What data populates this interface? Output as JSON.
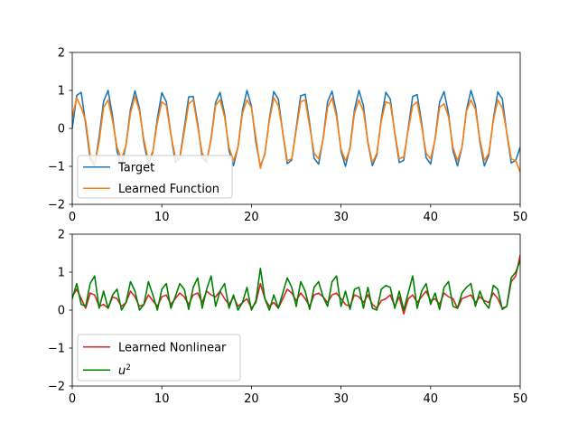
{
  "chart_data": [
    {
      "type": "line",
      "title": "",
      "xlabel": "",
      "ylabel": "",
      "xlim": [
        0,
        50
      ],
      "ylim": [
        -2,
        2
      ],
      "xticks": [
        "0",
        "10",
        "20",
        "30",
        "40",
        "50"
      ],
      "yticks": [
        "−2",
        "−1",
        "0",
        "1",
        "2"
      ],
      "grid": false,
      "legend_position": "lower-left",
      "series": [
        {
          "name": "Target",
          "color": "#1f77b4",
          "x": [
            0,
            0.5,
            1,
            1.5,
            2,
            2.5,
            3,
            3.5,
            4,
            4.5,
            5,
            5.5,
            6,
            6.5,
            7,
            7.5,
            8,
            8.5,
            9,
            9.5,
            10,
            10.5,
            11,
            11.5,
            12,
            12.5,
            13,
            13.5,
            14,
            14.5,
            15,
            15.5,
            16,
            16.5,
            17,
            17.5,
            18,
            18.5,
            19,
            19.5,
            20,
            20.5,
            21,
            21.5,
            22,
            22.5,
            23,
            23.5,
            24,
            24.5,
            25,
            25.5,
            26,
            26.5,
            27,
            27.5,
            28,
            28.5,
            29,
            29.5,
            30,
            30.5,
            31,
            31.5,
            32,
            32.5,
            33,
            33.5,
            34,
            34.5,
            35,
            35.5,
            36,
            36.5,
            37,
            37.5,
            38,
            38.5,
            39,
            39.5,
            40,
            40.5,
            41,
            41.5,
            42,
            42.5,
            43,
            43.5,
            44,
            44.5,
            45,
            45.5,
            46,
            46.5,
            47,
            47.5,
            48,
            48.5,
            49,
            49.5,
            50
          ],
          "y": [
            0,
            0.87,
            0.95,
            0.11,
            -0.8,
            -0.99,
            -0.22,
            0.71,
            1,
            0.32,
            -0.6,
            -1,
            -0.43,
            0.5,
            0.99,
            0.53,
            -0.38,
            -0.97,
            -0.62,
            0.26,
            0.94,
            0.7,
            -0.13,
            -0.89,
            -0.78,
            0,
            0.83,
            0.84,
            0.13,
            -0.76,
            -0.9,
            -0.26,
            0.68,
            0.95,
            0.38,
            -0.59,
            -0.98,
            -0.49,
            0.48,
            1,
            0.59,
            -0.37,
            -1,
            -0.68,
            0.25,
            0.97,
            0.77,
            -0.12,
            -0.93,
            -0.83,
            0.01,
            0.86,
            0.9,
            0.14,
            -0.79,
            -0.94,
            -0.27,
            0.7,
            0.98,
            0.39,
            -0.6,
            -1,
            -0.5,
            0.49,
            1,
            0.6,
            -0.38,
            -0.98,
            -0.69,
            0.26,
            0.95,
            0.77,
            -0.13,
            -0.9,
            -0.84,
            0,
            0.84,
            0.89,
            0.14,
            -0.77,
            -0.94,
            -0.27,
            0.69,
            0.97,
            0.39,
            -0.59,
            -0.99,
            -0.5,
            0.48,
            1,
            0.61,
            -0.36,
            -0.99,
            -0.7,
            0.24,
            0.96,
            0.78,
            -0.12,
            -0.91,
            -0.84,
            -0.5
          ]
        },
        {
          "name": "Learned Function",
          "color": "#ff7f0e",
          "x": [
            0,
            0.5,
            1,
            1.5,
            2,
            2.5,
            3,
            3.5,
            4,
            4.5,
            5,
            5.5,
            6,
            6.5,
            7,
            7.5,
            8,
            8.5,
            9,
            9.5,
            10,
            10.5,
            11,
            11.5,
            12,
            12.5,
            13,
            13.5,
            14,
            14.5,
            15,
            15.5,
            16,
            16.5,
            17,
            17.5,
            18,
            18.5,
            19,
            19.5,
            20,
            20.5,
            21,
            21.5,
            22,
            22.5,
            23,
            23.5,
            24,
            24.5,
            25,
            25.5,
            26,
            26.5,
            27,
            27.5,
            28,
            28.5,
            29,
            29.5,
            30,
            30.5,
            31,
            31.5,
            32,
            32.5,
            33,
            33.5,
            34,
            34.5,
            35,
            35.5,
            36,
            36.5,
            37,
            37.5,
            38,
            38.5,
            39,
            39.5,
            40,
            40.5,
            41,
            41.5,
            42,
            42.5,
            43,
            43.5,
            44,
            44.5,
            45,
            45.5,
            46,
            46.5,
            47,
            47.5,
            48,
            48.5,
            49,
            49.5,
            50
          ],
          "y": [
            0.3,
            0.8,
            0.55,
            0.2,
            -0.7,
            -0.95,
            -0.35,
            0.55,
            0.75,
            0.2,
            -0.5,
            -0.8,
            -0.45,
            0.4,
            0.85,
            0.45,
            -0.3,
            -0.85,
            -0.6,
            0.15,
            0.7,
            0.6,
            -0.15,
            -0.75,
            -0.8,
            -0.1,
            0.65,
            0.75,
            0.05,
            -0.65,
            -0.85,
            -0.3,
            0.6,
            0.75,
            0.3,
            -0.5,
            -0.85,
            -0.5,
            0.4,
            0.75,
            0.55,
            -0.25,
            -1.05,
            -0.65,
            0.2,
            0.8,
            0.6,
            -0.1,
            -0.85,
            -0.8,
            -0.05,
            0.7,
            0.75,
            0.05,
            -0.65,
            -0.8,
            -0.3,
            0.55,
            0.8,
            0.3,
            -0.55,
            -0.85,
            -0.55,
            0.4,
            0.75,
            0.45,
            -0.35,
            -0.9,
            -0.65,
            0.2,
            0.7,
            0.65,
            -0.1,
            -0.8,
            -0.75,
            -0.05,
            0.6,
            0.7,
            0.05,
            -0.65,
            -0.8,
            -0.3,
            0.55,
            0.65,
            0.3,
            -0.5,
            -0.85,
            -0.5,
            0.45,
            0.75,
            0.5,
            -0.3,
            -0.85,
            -0.65,
            0.2,
            0.75,
            0.55,
            -0.1,
            -0.8,
            -0.85,
            -1.15
          ]
        }
      ]
    },
    {
      "type": "line",
      "title": "",
      "xlabel": "",
      "ylabel": "",
      "xlim": [
        0,
        50
      ],
      "ylim": [
        -2,
        2
      ],
      "xticks": [
        "0",
        "10",
        "20",
        "30",
        "40",
        "50"
      ],
      "yticks": [
        "−2",
        "−1",
        "0",
        "1",
        "2"
      ],
      "grid": false,
      "legend_position": "lower-left",
      "series": [
        {
          "name": "Learned Nonlinear",
          "color": "#d62728",
          "x": [
            0,
            0.5,
            1,
            1.5,
            2,
            2.5,
            3,
            3.5,
            4,
            4.5,
            5,
            5.5,
            6,
            6.5,
            7,
            7.5,
            8,
            8.5,
            9,
            9.5,
            10,
            10.5,
            11,
            11.5,
            12,
            12.5,
            13,
            13.5,
            14,
            14.5,
            15,
            15.5,
            16,
            16.5,
            17,
            17.5,
            18,
            18.5,
            19,
            19.5,
            20,
            20.5,
            21,
            21.5,
            22,
            22.5,
            23,
            23.5,
            24,
            24.5,
            25,
            25.5,
            26,
            26.5,
            27,
            27.5,
            28,
            28.5,
            29,
            29.5,
            30,
            30.5,
            31,
            31.5,
            32,
            32.5,
            33,
            33.5,
            34,
            34.5,
            35,
            35.5,
            36,
            36.5,
            37,
            37.5,
            38,
            38.5,
            39,
            39.5,
            40,
            40.5,
            41,
            41.5,
            42,
            42.5,
            43,
            43.5,
            44,
            44.5,
            45,
            45.5,
            46,
            46.5,
            47,
            47.5,
            48,
            48.5,
            49,
            49.5,
            50
          ],
          "y": [
            0.35,
            0.55,
            0.3,
            0.05,
            0.45,
            0.4,
            0.1,
            0.15,
            0.05,
            0.35,
            0.3,
            0.1,
            0.2,
            0.5,
            0.35,
            0.1,
            0.15,
            0.4,
            0.25,
            0.1,
            0.35,
            0.4,
            0.15,
            0.3,
            0.45,
            0.35,
            0.15,
            0.4,
            0.45,
            0.2,
            0.5,
            0.4,
            0.35,
            0.5,
            0.3,
            0.15,
            0.35,
            0.1,
            0.2,
            0.3,
            0.05,
            0.2,
            0.7,
            0.3,
            0.1,
            0.2,
            0.05,
            0.3,
            0.55,
            0.45,
            0.25,
            0.45,
            0.3,
            0.1,
            0.4,
            0.45,
            0.35,
            0.2,
            0.4,
            0.45,
            0.3,
            0.15,
            0.1,
            0.4,
            0.35,
            0.2,
            0.4,
            0.15,
            0.05,
            0.25,
            0.3,
            0.4,
            0.1,
            0.35,
            -0.1,
            0.3,
            0.4,
            0.2,
            0.35,
            0.5,
            0.25,
            0.3,
            0.15,
            0.45,
            0.35,
            0.3,
            0.05,
            0.3,
            0.35,
            0.4,
            0.2,
            0.35,
            0.25,
            0.2,
            0.45,
            0.3,
            0.05,
            0.1,
            0.75,
            0.9,
            1.45
          ]
        },
        {
          "name": "$u^2$",
          "color": "#008000",
          "x": [
            0,
            0.5,
            1,
            1.5,
            2,
            2.5,
            3,
            3.5,
            4,
            4.5,
            5,
            5.5,
            6,
            6.5,
            7,
            7.5,
            8,
            8.5,
            9,
            9.5,
            10,
            10.5,
            11,
            11.5,
            12,
            12.5,
            13,
            13.5,
            14,
            14.5,
            15,
            15.5,
            16,
            16.5,
            17,
            17.5,
            18,
            18.5,
            19,
            19.5,
            20,
            20.5,
            21,
            21.5,
            22,
            22.5,
            23,
            23.5,
            24,
            24.5,
            25,
            25.5,
            26,
            26.5,
            27,
            27.5,
            28,
            28.5,
            29,
            29.5,
            30,
            30.5,
            31,
            31.5,
            32,
            32.5,
            33,
            33.5,
            34,
            34.5,
            35,
            35.5,
            36,
            36.5,
            37,
            37.5,
            38,
            38.5,
            39,
            39.5,
            40,
            40.5,
            41,
            41.5,
            42,
            42.5,
            43,
            43.5,
            44,
            44.5,
            45,
            45.5,
            46,
            46.5,
            47,
            47.5,
            48,
            48.5,
            49,
            49.5,
            50
          ],
          "y": [
            0.3,
            0.7,
            0.15,
            0.1,
            0.7,
            0.9,
            0.05,
            0.5,
            0.05,
            0.4,
            0.55,
            0.0,
            0.2,
            0.75,
            0.5,
            0.0,
            0.15,
            0.75,
            0.4,
            0.0,
            0.55,
            0.7,
            0.05,
            0.35,
            0.7,
            0.55,
            0.02,
            0.6,
            0.85,
            0.05,
            0.55,
            0.9,
            0.1,
            0.5,
            0.7,
            0.05,
            0.4,
            0.0,
            0.2,
            0.6,
            0.0,
            0.25,
            1.1,
            0.3,
            0.0,
            0.4,
            0.05,
            0.45,
            0.85,
            0.6,
            0.1,
            0.75,
            0.5,
            0.02,
            0.6,
            0.75,
            0.35,
            0.1,
            0.75,
            0.9,
            0.1,
            0.5,
            0.02,
            0.55,
            0.6,
            0.05,
            0.6,
            0.05,
            0.0,
            0.55,
            0.65,
            0.6,
            0.05,
            0.5,
            0.0,
            0.45,
            0.9,
            0.05,
            0.5,
            0.7,
            0.15,
            0.45,
            0.02,
            0.6,
            0.75,
            0.1,
            0.05,
            0.45,
            0.6,
            0.7,
            0.1,
            0.5,
            0.2,
            0.05,
            0.65,
            0.55,
            0.02,
            0.1,
            0.85,
            1.0,
            1.3
          ]
        }
      ]
    }
  ]
}
